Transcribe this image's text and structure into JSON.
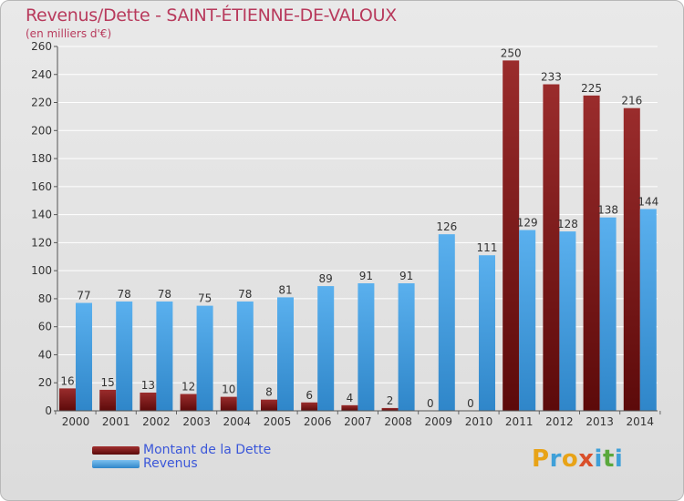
{
  "header": {
    "title": "Revenus/Dette - SAINT-ÉTIENNE-DE-VALOUX",
    "subtitle": "(en milliers d'€)"
  },
  "chart_data": {
    "type": "bar",
    "categories": [
      "2000",
      "2001",
      "2002",
      "2003",
      "2004",
      "2005",
      "2006",
      "2007",
      "2008",
      "2009",
      "2010",
      "2011",
      "2012",
      "2013",
      "2014"
    ],
    "series": [
      {
        "name": "Montant de la Dette",
        "values": [
          16,
          15,
          13,
          12,
          10,
          8,
          6,
          4,
          2,
          0,
          0,
          250,
          233,
          225,
          216
        ],
        "color": "#8b1f1f"
      },
      {
        "name": "Revenus",
        "values": [
          77,
          78,
          78,
          75,
          78,
          81,
          89,
          91,
          91,
          126,
          111,
          129,
          128,
          138,
          144
        ],
        "color": "#4aa3e6"
      }
    ],
    "ylim": [
      0,
      260
    ],
    "yticks": [
      0,
      20,
      40,
      60,
      80,
      100,
      120,
      140,
      160,
      180,
      200,
      220,
      240,
      260
    ],
    "grid": true,
    "legend_position": "bottom-left",
    "title": "Revenus/Dette - SAINT-ÉTIENNE-DE-VALOUX",
    "ylabel": "(en milliers d'€)"
  },
  "legend": {
    "items": [
      {
        "label": "Montant de la Dette",
        "color": "#6a0f0f"
      },
      {
        "label": "Revenus",
        "color": "#4aa3e6"
      }
    ]
  },
  "logo": {
    "letters": [
      "P",
      "r",
      "o",
      "x",
      "i",
      "t",
      "i"
    ],
    "colors": [
      "#e8a317",
      "#3fa0d8",
      "#e8a317",
      "#d94f2a",
      "#3fa0d8",
      "#5aa83c",
      "#3fa0d8"
    ]
  }
}
